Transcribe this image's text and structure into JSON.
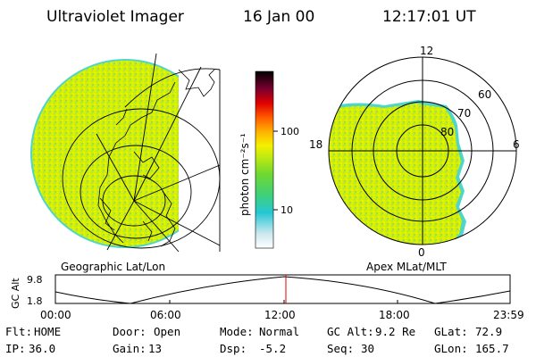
{
  "header": {
    "title": "Ultraviolet Imager",
    "date": "16 Jan 00",
    "time": "12:17:01 UT"
  },
  "colorbar": {
    "unit_label": "photon cm⁻²s⁻¹",
    "ticks": [
      "100",
      "10"
    ]
  },
  "left_image": {
    "caption": "Geographic Lat/Lon"
  },
  "right_image": {
    "caption": "Apex MLat/MLT",
    "mlt_labels": [
      "12",
      "18",
      "6",
      "0"
    ],
    "mlat_labels": [
      "80",
      "70",
      "60"
    ]
  },
  "orbit_plot": {
    "ylabel": "GC Alt",
    "yticks": [
      "9.8",
      "1.8"
    ],
    "xticks": [
      "00:00",
      "06:00",
      "12:00",
      "18:00",
      "23:59"
    ]
  },
  "status": {
    "row1": [
      {
        "label": "Flt:",
        "value": "HOME"
      },
      {
        "label": "Door:",
        "value": "Open"
      },
      {
        "label": "Mode:",
        "value": "Normal"
      },
      {
        "label": "GC Alt:",
        "value": "9.2 Re"
      },
      {
        "label": "GLat:",
        "value": "72.9"
      }
    ],
    "row2": [
      {
        "label": "IP:",
        "value": "36.0"
      },
      {
        "label": "Gain:",
        "value": "13"
      },
      {
        "label": "Dsp:",
        "value": "-5.2"
      },
      {
        "label": "Seq:",
        "value": "30"
      },
      {
        "label": "GLon:",
        "value": "165.7"
      }
    ]
  },
  "colors": {
    "image_fill": "#d8f000",
    "image_edge": "#4fd6c8"
  }
}
